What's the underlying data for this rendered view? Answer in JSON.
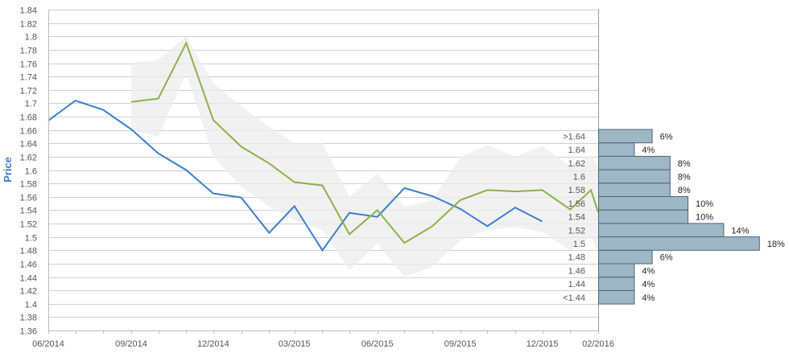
{
  "chart_data": {
    "type": "line",
    "ylabel": "Price",
    "ylim": [
      1.36,
      1.84
    ],
    "yticks": [
      1.36,
      1.38,
      1.4,
      1.42,
      1.44,
      1.46,
      1.48,
      1.5,
      1.52,
      1.54,
      1.56,
      1.58,
      1.6,
      1.62,
      1.64,
      1.66,
      1.68,
      1.7,
      1.72,
      1.74,
      1.76,
      1.78,
      1.8,
      1.82,
      1.84
    ],
    "ytick_labels": [
      "1.36",
      "1.38",
      "1.4",
      "1.42",
      "1.44",
      "1.46",
      "1.48",
      "1.5",
      "1.52",
      "1.54",
      "1.56",
      "1.58",
      "1.6",
      "1.62",
      "1.64",
      "1.66",
      "1.68",
      "1.7",
      "1.72",
      "1.74",
      "1.76",
      "1.78",
      "1.8",
      "1.82",
      "1.84"
    ],
    "xlim": [
      "2014-06",
      "2016-02"
    ],
    "xtick_labels": [
      "06/2014",
      "09/2014",
      "12/2014",
      "03/2015",
      "06/2015",
      "09/2015",
      "12/2015",
      "02/2016"
    ],
    "xticks": [
      "2014-06",
      "2014-09",
      "2014-12",
      "2015-03",
      "2015-06",
      "2015-09",
      "2015-12",
      "2016-02"
    ],
    "grid": true,
    "series": [
      {
        "color": "#3a7fcc",
        "points": [
          [
            "2014-06",
            1.674
          ],
          [
            "2014-07",
            1.704
          ],
          [
            "2014-08",
            1.69
          ],
          [
            "2014-09",
            1.661
          ],
          [
            "2014-10",
            1.625
          ],
          [
            "2014-11",
            1.6
          ],
          [
            "2014-12",
            1.565
          ],
          [
            "2015-01",
            1.559
          ],
          [
            "2015-02",
            1.506
          ],
          [
            "2015-03",
            1.546
          ],
          [
            "2015-04",
            1.48
          ],
          [
            "2015-05",
            1.536
          ],
          [
            "2015-06",
            1.53
          ],
          [
            "2015-07",
            1.573
          ],
          [
            "2015-08",
            1.561
          ],
          [
            "2015-09",
            1.542
          ],
          [
            "2015-10",
            1.516
          ],
          [
            "2015-11",
            1.544
          ],
          [
            "2015-12",
            1.523
          ]
        ]
      },
      {
        "color": "#8cb14a",
        "points": [
          [
            "2014-09",
            1.702
          ],
          [
            "2014-10",
            1.707
          ],
          [
            "2014-11",
            1.79
          ],
          [
            "2014-12",
            1.675
          ],
          [
            "2015-01",
            1.635
          ],
          [
            "2015-02",
            1.61
          ],
          [
            "2015-03",
            1.582
          ],
          [
            "2015-04",
            1.577
          ],
          [
            "2015-05",
            1.504
          ],
          [
            "2015-06",
            1.54
          ],
          [
            "2015-07",
            1.491
          ],
          [
            "2015-08",
            1.516
          ],
          [
            "2015-09",
            1.555
          ],
          [
            "2015-10",
            1.57
          ],
          [
            "2015-11",
            1.568
          ],
          [
            "2015-12",
            1.57
          ],
          [
            "2016-01",
            1.541
          ],
          [
            "2016-01-24",
            1.57
          ],
          [
            "2016-02",
            1.537
          ]
        ]
      }
    ],
    "band": {
      "color": "#ececec",
      "upper": [
        [
          "2014-09",
          1.76
        ],
        [
          "2014-10",
          1.765
        ],
        [
          "2014-11",
          1.8
        ],
        [
          "2014-12",
          1.73
        ],
        [
          "2015-01",
          1.695
        ],
        [
          "2015-02",
          1.665
        ],
        [
          "2015-03",
          1.64
        ],
        [
          "2015-04",
          1.64
        ],
        [
          "2015-05",
          1.56
        ],
        [
          "2015-06",
          1.595
        ],
        [
          "2015-07",
          1.545
        ],
        [
          "2015-08",
          1.555
        ],
        [
          "2015-09",
          1.62
        ],
        [
          "2015-10",
          1.637
        ],
        [
          "2015-11",
          1.62
        ],
        [
          "2015-12",
          1.636
        ],
        [
          "2016-01",
          1.606
        ],
        [
          "2016-01-24",
          1.622
        ],
        [
          "2016-02",
          1.605
        ]
      ],
      "lower": [
        [
          "2014-09",
          1.66
        ],
        [
          "2014-10",
          1.65
        ],
        [
          "2014-11",
          1.745
        ],
        [
          "2014-12",
          1.62
        ],
        [
          "2015-01",
          1.575
        ],
        [
          "2015-02",
          1.545
        ],
        [
          "2015-03",
          1.525
        ],
        [
          "2015-04",
          1.51
        ],
        [
          "2015-05",
          1.45
        ],
        [
          "2015-06",
          1.49
        ],
        [
          "2015-07",
          1.44
        ],
        [
          "2015-08",
          1.455
        ],
        [
          "2015-09",
          1.495
        ],
        [
          "2015-10",
          1.51
        ],
        [
          "2015-11",
          1.515
        ],
        [
          "2015-12",
          1.507
        ],
        [
          "2016-01",
          1.48
        ],
        [
          "2016-01-24",
          1.5
        ],
        [
          "2016-02",
          1.478
        ]
      ]
    },
    "distribution": {
      "color": "#9fb6c4",
      "bins": [
        {
          "label": ">1.64",
          "value": 6,
          "value_label": "6%"
        },
        {
          "label": "1.64",
          "value": 4,
          "value_label": "4%"
        },
        {
          "label": "1.62",
          "value": 8,
          "value_label": "8%"
        },
        {
          "label": "1.6",
          "value": 8,
          "value_label": "8%"
        },
        {
          "label": "1.58",
          "value": 8,
          "value_label": "8%"
        },
        {
          "label": "1.56",
          "value": 10,
          "value_label": "10%"
        },
        {
          "label": "1.54",
          "value": 10,
          "value_label": "10%"
        },
        {
          "label": "1.52",
          "value": 14,
          "value_label": "14%"
        },
        {
          "label": "1.5",
          "value": 18,
          "value_label": "18%"
        },
        {
          "label": "1.48",
          "value": 6,
          "value_label": "6%"
        },
        {
          "label": "1.46",
          "value": 4,
          "value_label": "4%"
        },
        {
          "label": "1.44",
          "value": 4,
          "value_label": "4%"
        },
        {
          "label": "<1.44",
          "value": 4,
          "value_label": "4%"
        }
      ]
    }
  }
}
